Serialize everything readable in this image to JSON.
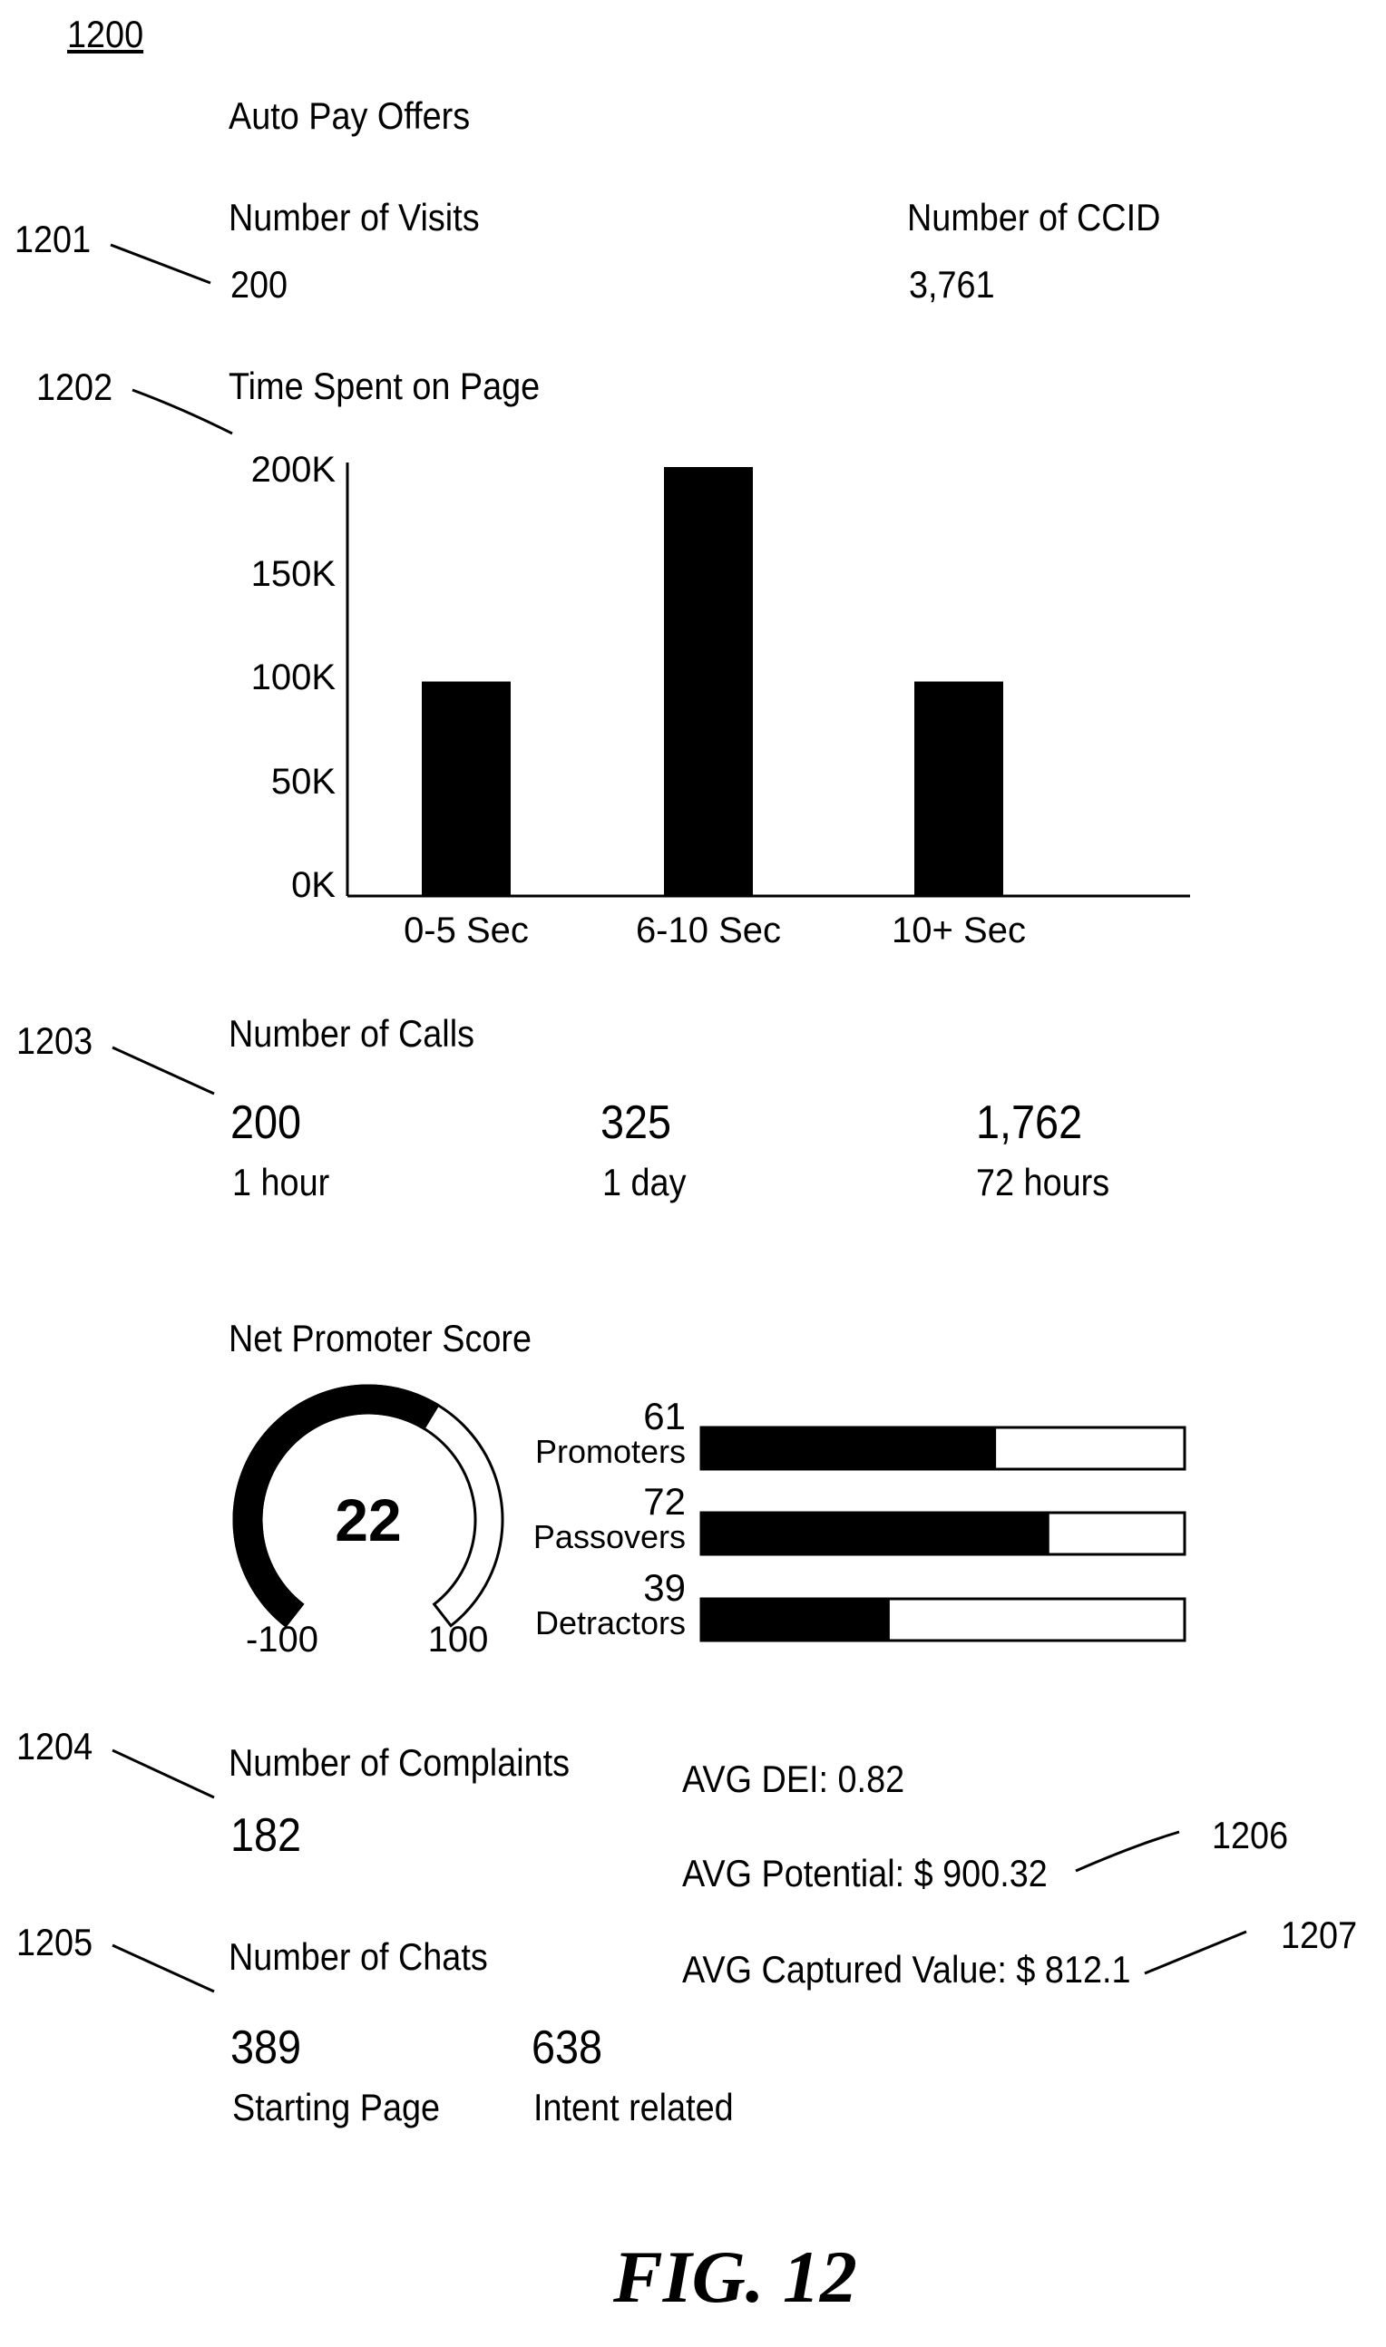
{
  "figure": {
    "ref": "1200",
    "caption": "FIG. 12"
  },
  "title": "Auto Pay Offers",
  "refs": {
    "r1201": "1201",
    "r1202": "1202",
    "r1203": "1203",
    "r1204": "1204",
    "r1205": "1205",
    "r1206": "1206",
    "r1207": "1207"
  },
  "visits": {
    "label": "Number of Visits",
    "value": "200"
  },
  "ccid": {
    "label": "Number of CCID",
    "value": "3,761"
  },
  "time_spent": {
    "title": "Time Spent on Page",
    "y_ticks": [
      "0K",
      "50K",
      "100K",
      "150K",
      "200K"
    ]
  },
  "chart_data": {
    "type": "bar",
    "title": "Time Spent on Page",
    "categories": [
      "0-5 Sec",
      "6-10 Sec",
      "10+ Sec"
    ],
    "values": [
      100000,
      200000,
      100000
    ],
    "ylim": [
      0,
      200000
    ],
    "xlabel": "",
    "ylabel": "",
    "grid": false
  },
  "calls": {
    "label": "Number of Calls",
    "items": [
      {
        "value": "200",
        "period": "1 hour"
      },
      {
        "value": "325",
        "period": "1 day"
      },
      {
        "value": "1,762",
        "period": "72 hours"
      }
    ]
  },
  "nps": {
    "label": "Net Promoter Score",
    "score": "22",
    "score_value": 22,
    "min_label": "-100",
    "max_label": "100",
    "range": [
      -100,
      100
    ],
    "bar_max": 100,
    "groups": [
      {
        "name": "Promoters",
        "count": "61",
        "value": 61
      },
      {
        "name": "Passovers",
        "count": "72",
        "value": 72
      },
      {
        "name": "Detractors",
        "count": "39",
        "value": 39
      }
    ]
  },
  "complaints": {
    "label": "Number of Complaints",
    "value": "182"
  },
  "chats": {
    "label": "Number of Chats",
    "items": [
      {
        "value": "389",
        "label": "Starting Page"
      },
      {
        "value": "638",
        "label": "Intent related"
      }
    ]
  },
  "averages": {
    "dei": "AVG DEI: 0.82",
    "potential": "AVG Potential: $ 900.32",
    "captured": "AVG Captured Value: $ 812.1"
  },
  "colors": {
    "ink": "#000000",
    "paper": "#ffffff"
  }
}
